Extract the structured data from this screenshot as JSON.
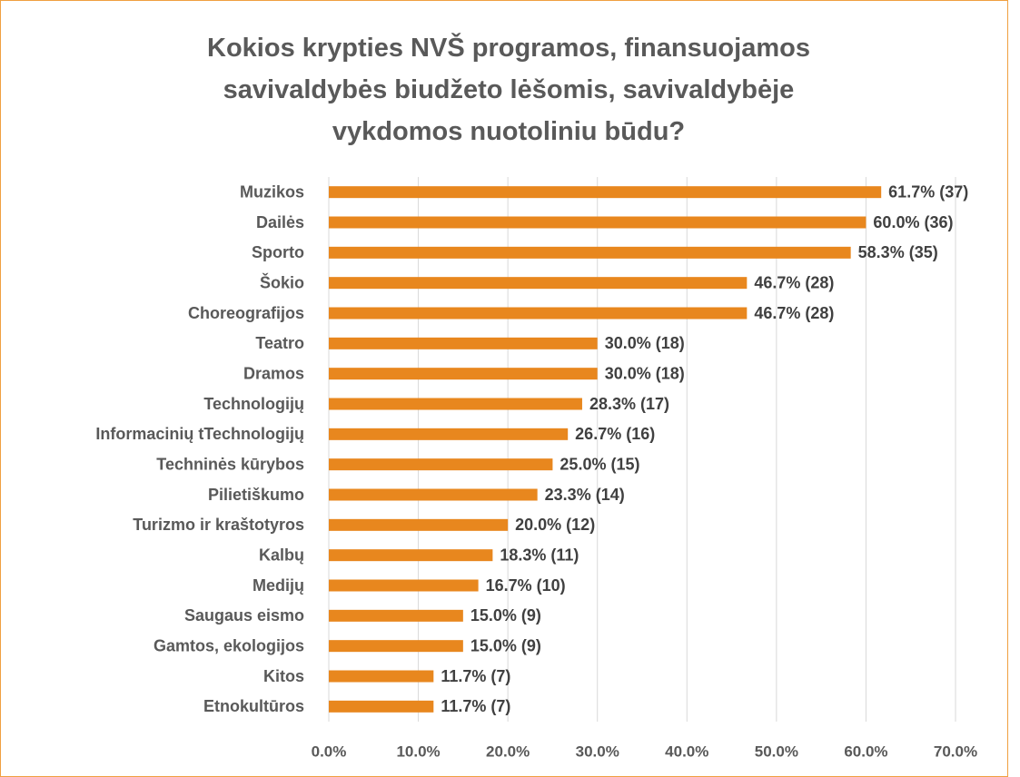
{
  "chart_data": {
    "type": "barh",
    "title": "Kokios krypties NVŠ programos, finansuojamos savivaldybės biudžeto lėšomis, savivaldybėje vykdomos nuotoliniu būdu?",
    "categories": [
      "Muzikos",
      "Dailės",
      "Sporto",
      "Šokio",
      "Choreografijos",
      "Teatro",
      "Dramos",
      "Technologijų",
      "Informacinių tTechnologijų",
      "Techninės kūrybos",
      "Pilietiškumo",
      "Turizmo ir kraštotyros",
      "Kalbų",
      "Medijų",
      "Saugaus eismo",
      "Gamtos, ekologijos",
      "Kitos",
      "Etnokultūros"
    ],
    "values": [
      61.7,
      60.0,
      58.3,
      46.7,
      46.7,
      30.0,
      30.0,
      28.3,
      26.7,
      25.0,
      23.3,
      20.0,
      18.3,
      16.7,
      15.0,
      15.0,
      11.7,
      11.7
    ],
    "value_labels": [
      "61.7% (37)",
      "60.0% (36)",
      "58.3% (35)",
      "46.7% (28)",
      "46.7% (28)",
      "30.0% (18)",
      "30.0% (18)",
      "28.3% (17)",
      "26.7% (16)",
      "25.0% (15)",
      "23.3% (14)",
      "20.0% (12)",
      "18.3% (11)",
      "16.7% (10)",
      "15.0% (9)",
      "15.0% (9)",
      "11.7% (7)",
      "11.7% (7)"
    ],
    "color": "#e8871e",
    "xlim": [
      0,
      70
    ],
    "xticks": [
      {
        "value": 0,
        "label": "0.0%"
      },
      {
        "value": 10,
        "label": "10.0%"
      },
      {
        "value": 20,
        "label": "20.0%"
      },
      {
        "value": 30,
        "label": "30.0%"
      },
      {
        "value": 40,
        "label": "40.0%"
      },
      {
        "value": 50,
        "label": "50.0%"
      },
      {
        "value": 60,
        "label": "60.0%"
      },
      {
        "value": 70,
        "label": "70.0%"
      }
    ],
    "grid": true
  }
}
